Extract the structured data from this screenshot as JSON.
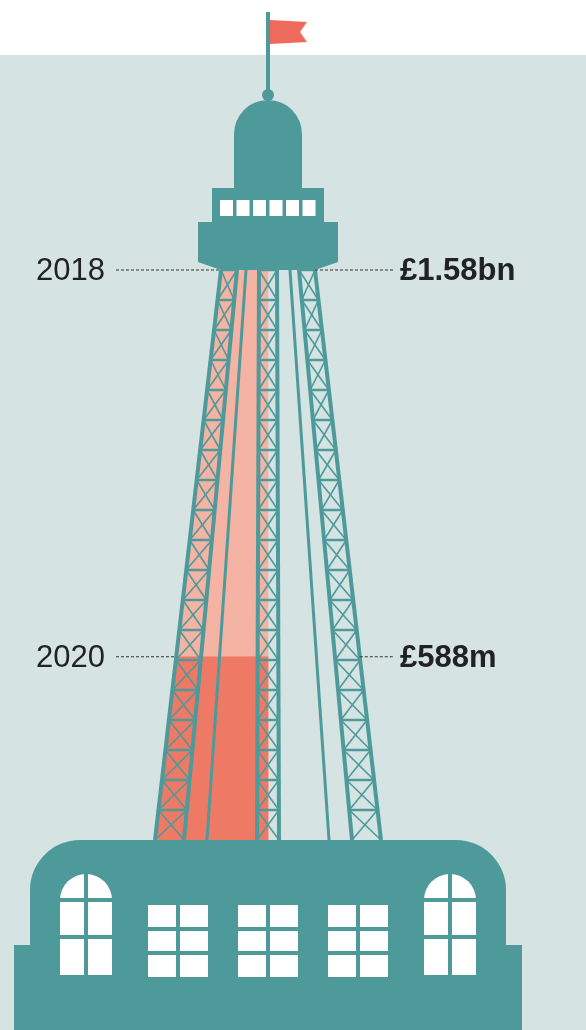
{
  "chart_data": {
    "type": "bar",
    "categories": [
      "2018",
      "2020"
    ],
    "values": [
      1580,
      588
    ],
    "value_labels": [
      "£1.58bn",
      "£588m"
    ],
    "colors": [
      "#f4b3a3",
      "#ee7965"
    ],
    "data_labels": true,
    "tick_labels": false
  }
}
